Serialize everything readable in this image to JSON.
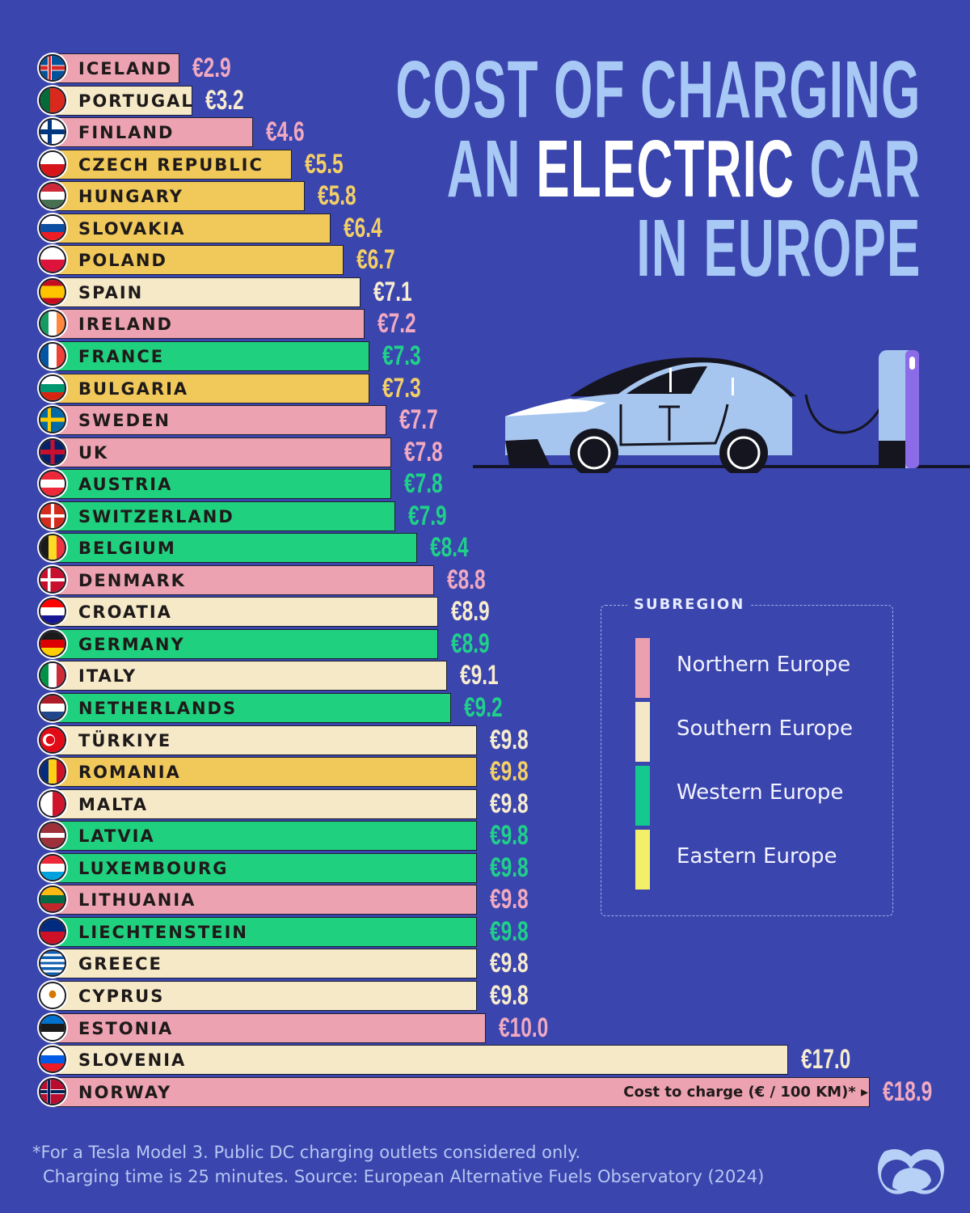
{
  "title": {
    "line1": "COST OF CHARGING",
    "line2_pre": "AN ",
    "line2_highlight": "ELECTRIC",
    "line2_post": " CAR",
    "line3": "IN EUROPE"
  },
  "axis_note": "Cost to charge (€ / 100 KM)* ▸",
  "legend": {
    "title": "SUBREGION",
    "items": [
      {
        "label": "Northern Europe",
        "color": "#ec9fae"
      },
      {
        "label": "Southern Europe",
        "color": "#f5e8c6"
      },
      {
        "label": "Western Europe",
        "color": "#14c98d"
      },
      {
        "label": "Eastern Europe",
        "color": "#f4ef6a"
      }
    ]
  },
  "colors": {
    "background": "#3a45ad",
    "title": "#a8c8f5",
    "Northern": {
      "bar": "#eca2b0",
      "text": "#f0a9c0"
    },
    "Southern": {
      "bar": "#f5e9c8",
      "text": "#f7eccf"
    },
    "Western": {
      "bar": "#1fd07f",
      "text": "#20d08a"
    },
    "Eastern": {
      "bar": "#f0c95a",
      "text": "#f3cf68"
    }
  },
  "footnote": {
    "line1": "*For a Tesla Model 3. Public DC charging outlets considered only.",
    "line2": "Charging time is 25 minutes. Source: European Alternative Fuels Observatory (2024)"
  },
  "chart_data": {
    "type": "bar",
    "orientation": "horizontal",
    "title": "Cost of Charging an Electric Car in Europe",
    "xlabel": "Cost to charge (€ / 100 KM)*",
    "ylabel": "",
    "legend_title": "SUBREGION",
    "legend_position": "right",
    "grid": false,
    "xlim": [
      0,
      19
    ],
    "categories": [
      "ICELAND",
      "PORTUGAL",
      "FINLAND",
      "CZECH REPUBLIC",
      "HUNGARY",
      "SLOVAKIA",
      "POLAND",
      "SPAIN",
      "IRELAND",
      "FRANCE",
      "BULGARIA",
      "SWEDEN",
      "UK",
      "AUSTRIA",
      "SWITZERLAND",
      "BELGIUM",
      "DENMARK",
      "CROATIA",
      "GERMANY",
      "ITALY",
      "NETHERLANDS",
      "TÜRKIYE",
      "ROMANIA",
      "MALTA",
      "LATVIA",
      "LUXEMBOURG",
      "LITHUANIA",
      "LIECHTENSTEIN",
      "GREECE",
      "CYPRUS",
      "ESTONIA",
      "SLOVENIA",
      "NORWAY"
    ],
    "values": [
      2.9,
      3.2,
      4.6,
      5.5,
      5.8,
      6.4,
      6.7,
      7.1,
      7.2,
      7.3,
      7.3,
      7.7,
      7.8,
      7.8,
      7.9,
      8.4,
      8.8,
      8.9,
      8.9,
      9.1,
      9.2,
      9.8,
      9.8,
      9.8,
      9.8,
      9.8,
      9.8,
      9.8,
      9.8,
      9.8,
      10.0,
      17.0,
      18.9
    ],
    "value_labels": [
      "€2.9",
      "€3.2",
      "€4.6",
      "€5.5",
      "€5.8",
      "€6.4",
      "€6.7",
      "€7.1",
      "€7.2",
      "€7.3",
      "€7.3",
      "€7.7",
      "€7.8",
      "€7.8",
      "€7.9",
      "€8.4",
      "€8.8",
      "€8.9",
      "€8.9",
      "€9.1",
      "€9.2",
      "€9.8",
      "€9.8",
      "€9.8",
      "€9.8",
      "€9.8",
      "€9.8",
      "€9.8",
      "€9.8",
      "€9.8",
      "€10.0",
      "€17.0",
      "€18.9"
    ],
    "subregions": [
      "Northern",
      "Southern",
      "Northern",
      "Eastern",
      "Eastern",
      "Eastern",
      "Eastern",
      "Southern",
      "Northern",
      "Western",
      "Eastern",
      "Northern",
      "Northern",
      "Western",
      "Western",
      "Western",
      "Northern",
      "Southern",
      "Western",
      "Southern",
      "Western",
      "Southern",
      "Eastern",
      "Southern",
      "Western",
      "Western",
      "Northern",
      "Western",
      "Southern",
      "Southern",
      "Northern",
      "Southern",
      "Northern"
    ],
    "flags": [
      "iceland",
      "portugal",
      "finland",
      "czech",
      "hungary",
      "slovakia",
      "poland",
      "spain",
      "ireland",
      "france",
      "bulgaria",
      "sweden",
      "uk",
      "austria",
      "switzerland",
      "belgium",
      "denmark",
      "croatia",
      "germany",
      "italy",
      "netherlands",
      "turkiye",
      "romania",
      "malta",
      "latvia",
      "luxembourg",
      "lithuania",
      "liechtenstein",
      "greece",
      "cyprus",
      "estonia",
      "slovenia",
      "norway"
    ]
  }
}
